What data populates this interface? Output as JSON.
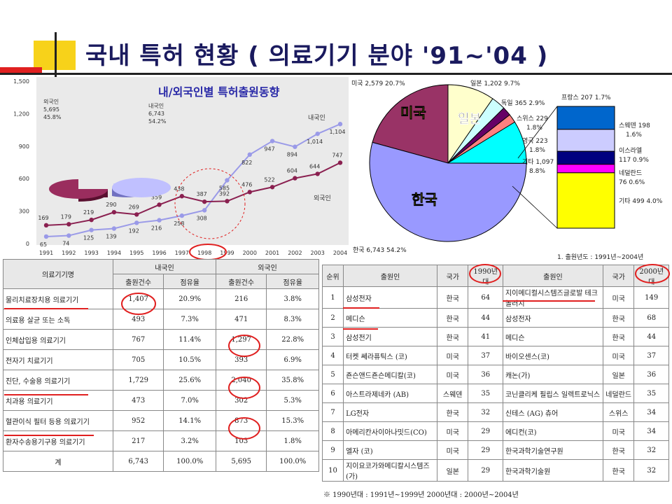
{
  "title": "국내 특허 현황   (  의료기기 분야 '91~'04  )",
  "line_chart": {
    "subtitle": "내/외국인별 특허출원동향",
    "pie_labels": [
      {
        "name": "외국인",
        "value": "5,695",
        "pct": "45.8%"
      },
      {
        "name": "내국인",
        "value": "6,743",
        "pct": "54.2%"
      }
    ],
    "series_labels": {
      "domestic": "내국인",
      "foreign": "외국인"
    }
  },
  "pie_chart": {
    "labels": [
      {
        "text": "미국 2,579  20.7%"
      },
      {
        "text": "일본 1,202  9.7%"
      },
      {
        "text": "독일 365  2.9%"
      },
      {
        "text": "스위스 229"
      },
      {
        "text": "1.8%"
      },
      {
        "text": "영국 223"
      },
      {
        "text": "1.8%"
      },
      {
        "text": "기타 1,097"
      },
      {
        "text": "8.8%"
      },
      {
        "text": "한국 6,743  54.2%"
      }
    ],
    "big_labels": {
      "usa": "미국",
      "japan": "일본",
      "korea": "한국"
    },
    "bar_labels": [
      {
        "text": "프랑스 207  1.7%"
      },
      {
        "text": "스웨덴 198"
      },
      {
        "text": "1.6%"
      },
      {
        "text": "이스라엘"
      },
      {
        "text": "117  0.9%"
      },
      {
        "text": "네덜란드"
      },
      {
        "text": "76  0.6%"
      },
      {
        "text": "기타 499  4.0%"
      }
    ],
    "note": "1. 출원년도 : 1991년~2004년"
  },
  "chart_data": [
    {
      "type": "line",
      "x": [
        "1991",
        "1992",
        "1993",
        "1994",
        "1995",
        "1996",
        "1997",
        "1998",
        "1999",
        "2000",
        "2001",
        "2002",
        "2003",
        "2004"
      ],
      "series": [
        {
          "name": "내국인",
          "values": [
            65,
            74,
            125,
            139,
            192,
            216,
            258,
            308,
            585,
            822,
            947,
            894,
            1014,
            1104
          ],
          "color": "#9a9ae8"
        },
        {
          "name": "외국인",
          "values": [
            169,
            179,
            219,
            290,
            269,
            359,
            438,
            387,
            392,
            476,
            522,
            604,
            644,
            747
          ],
          "color": "#8a2050"
        }
      ],
      "y_ticks": [
        "0",
        "300",
        "600",
        "900",
        "1,200",
        "1,500"
      ],
      "ylim": [
        0,
        1500
      ]
    },
    {
      "type": "pie",
      "series": [
        {
          "name": "한국",
          "value": 6743,
          "pct": 54.2,
          "color": "#9999ff"
        },
        {
          "name": "미국",
          "value": 2579,
          "pct": 20.7,
          "color": "#993366"
        },
        {
          "name": "일본",
          "value": 1202,
          "pct": 9.7,
          "color": "#ffffcc"
        },
        {
          "name": "독일",
          "value": 365,
          "pct": 2.9,
          "color": "#ccffff"
        },
        {
          "name": "스위스",
          "value": 229,
          "pct": 1.8,
          "color": "#660066"
        },
        {
          "name": "영국",
          "value": 223,
          "pct": 1.8,
          "color": "#ff8080"
        },
        {
          "name": "기타",
          "value": 1097,
          "pct": 8.8,
          "color": "#00ffff"
        }
      ]
    },
    {
      "type": "bar",
      "stacked": true,
      "series": [
        {
          "name": "프랑스",
          "value": 207,
          "pct": 1.7,
          "color": "#0066cc"
        },
        {
          "name": "스웨덴",
          "value": 198,
          "pct": 1.6,
          "color": "#ccccff"
        },
        {
          "name": "이스라엘",
          "value": 117,
          "pct": 0.9,
          "color": "#000080"
        },
        {
          "name": "네덜란드",
          "value": 76,
          "pct": 0.6,
          "color": "#ff00ff"
        },
        {
          "name": "기타",
          "value": 499,
          "pct": 4.0,
          "color": "#ffff00"
        }
      ]
    }
  ],
  "table1": {
    "headers": {
      "device": "의료기기명",
      "domestic": "내국인",
      "foreign": "외국인",
      "count": "출원건수",
      "share": "점유율"
    },
    "rows": [
      {
        "name": "물리치료장치용 의료기기",
        "d_count": "1,407",
        "d_share": "20.9%",
        "f_count": "216",
        "f_share": "3.8%"
      },
      {
        "name": "의료용 살균 또는 소독",
        "d_count": "493",
        "d_share": "7.3%",
        "f_count": "471",
        "f_share": "8.3%"
      },
      {
        "name": "인체삽입용 의료기기",
        "d_count": "767",
        "d_share": "11.4%",
        "f_count": "1,297",
        "f_share": "22.8%"
      },
      {
        "name": "전자기 치료기기",
        "d_count": "705",
        "d_share": "10.5%",
        "f_count": "393",
        "f_share": "6.9%"
      },
      {
        "name": "진단, 수술용 의료기기",
        "d_count": "1,729",
        "d_share": "25.6%",
        "f_count": "2,040",
        "f_share": "35.8%"
      },
      {
        "name": "치과용 의료기기",
        "d_count": "473",
        "d_share": "7.0%",
        "f_count": "302",
        "f_share": "5.3%"
      },
      {
        "name": "혈관이식 필터 등용 의료기기",
        "d_count": "952",
        "d_share": "14.1%",
        "f_count": "873",
        "f_share": "15.3%"
      },
      {
        "name": "환자수송용기구용 의료기기",
        "d_count": "217",
        "d_share": "3.2%",
        "f_count": "103",
        "f_share": "1.8%"
      },
      {
        "name": "계",
        "d_count": "6,743",
        "d_share": "100.0%",
        "f_count": "5,695",
        "f_share": "100.0%"
      }
    ]
  },
  "table2": {
    "headers": {
      "rank": "순위",
      "applicant": "출원인",
      "country": "국가",
      "p1990": "1990년대",
      "p2000": "2000년대"
    },
    "rows": [
      {
        "rank": "1",
        "a1": "삼성전자",
        "c1": "한국",
        "n1": "64",
        "a2": "지이메디컬시스템즈글로발 테크놀러지",
        "c2": "미국",
        "n2": "149"
      },
      {
        "rank": "2",
        "a1": "메디슨",
        "c1": "한국",
        "n1": "44",
        "a2": "삼성전자",
        "c2": "한국",
        "n2": "68"
      },
      {
        "rank": "3",
        "a1": "삼성전기",
        "c1": "한국",
        "n1": "41",
        "a2": "메디슨",
        "c2": "한국",
        "n2": "44"
      },
      {
        "rank": "4",
        "a1": "터켓 쎄라퓨틱스 (코)",
        "c1": "미국",
        "n1": "37",
        "a2": "바이오센스(코)",
        "c2": "미국",
        "n2": "37"
      },
      {
        "rank": "5",
        "a1": "죤슨앤드죤슨메디칼(코)",
        "c1": "미국",
        "n1": "36",
        "a2": "캐논(가)",
        "c2": "일본",
        "n2": "36"
      },
      {
        "rank": "6",
        "a1": "아스트라제네카 (AB)",
        "c1": "스웨덴",
        "n1": "35",
        "a2": "코닌클리케 필립스 일렉트로닉스",
        "c2": "네덜란드",
        "n2": "35"
      },
      {
        "rank": "7",
        "a1": "LG전자",
        "c1": "한국",
        "n1": "32",
        "a2": "신테스 (AG) 츄어",
        "c2": "스위스",
        "n2": "34"
      },
      {
        "rank": "8",
        "a1": "아메리칸사이아나밋드(CO)",
        "c1": "미국",
        "n1": "29",
        "a2": "에디컨(코)",
        "c2": "미국",
        "n2": "34"
      },
      {
        "rank": "9",
        "a1": "엘자 (코)",
        "c1": "미국",
        "n1": "29",
        "a2": "한국과학기술연구원",
        "c2": "한국",
        "n2": "32"
      },
      {
        "rank": "10",
        "a1": "지이요코가와메디칼시스템즈(가)",
        "c1": "일본",
        "n1": "29",
        "a2": "한국과학기술원",
        "c2": "한국",
        "n2": "32"
      }
    ],
    "footnote": "※ 1990년대 : 1991년~1999년          2000년대 : 2000년~2004년"
  }
}
